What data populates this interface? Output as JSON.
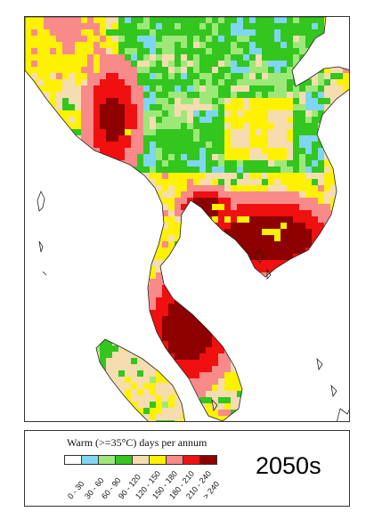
{
  "legend": {
    "title_prefix": "Warm (",
    "title_threshold": ">=35",
    "title_unit": "°C",
    "title_suffix": ") days per annum",
    "classes": [
      {
        "label": "0 - 30",
        "color": "#ffffff"
      },
      {
        "label": "30 - 60",
        "color": "#7fd6f0"
      },
      {
        "label": "60 - 90",
        "color": "#9ee87a"
      },
      {
        "label": "90 - 120",
        "color": "#33c61f"
      },
      {
        "label": "120 - 150",
        "color": "#f5ddb0"
      },
      {
        "label": "150 - 180",
        "color": "#fff200"
      },
      {
        "label": "180 - 210",
        "color": "#f88a8a"
      },
      {
        "label": "210 - 240",
        "color": "#f01010"
      },
      {
        "label": "> 240",
        "color": "#8e0000"
      }
    ]
  },
  "period_label": "2050s",
  "colors": {
    "sea": "#ffffff",
    "coastline": "#222222",
    "frame": "#333333"
  }
}
